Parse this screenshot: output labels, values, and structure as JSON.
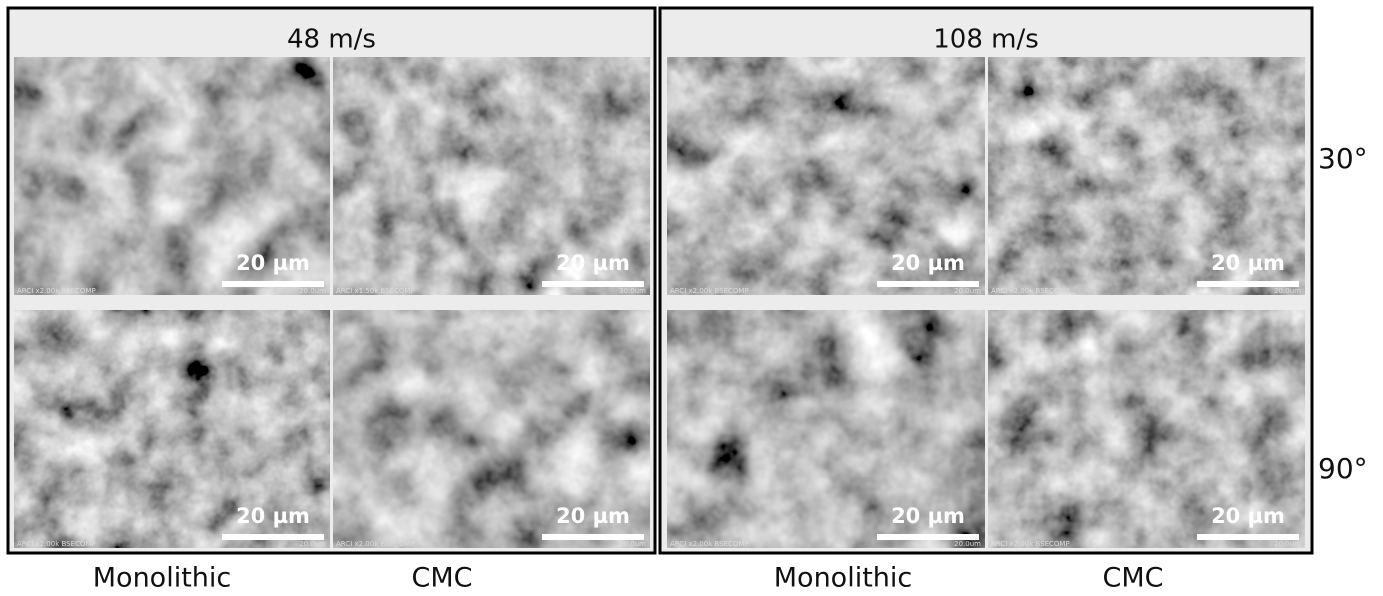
{
  "panels": [
    {
      "title": "48 m/s",
      "images": [
        {
          "scale_bar": "20 µm",
          "info": "ARCI x2.00k BSECOMP",
          "field": "20.0um"
        },
        {
          "scale_bar": "20 µm",
          "info": "ARCI x1.50k BSECOMP",
          "field": "30.0um"
        },
        {
          "scale_bar": "20 µm",
          "info": "ARCI x2.00k BSECOMP",
          "field": "20.0um"
        },
        {
          "scale_bar": "20 µm",
          "info": "ARCI x2.00k BSECOMP",
          "field": "20.0um"
        }
      ]
    },
    {
      "title": "108 m/s",
      "images": [
        {
          "scale_bar": "20 µm",
          "info": "ARCI x2.00k BSECOMP",
          "field": "20.0um"
        },
        {
          "scale_bar": "20 µm",
          "info": "ARCI x2.00k BSECOMP",
          "field": "20.0um"
        },
        {
          "scale_bar": "20 µm",
          "info": "ARCI x2.00k BSECOMP",
          "field": "20.0um"
        },
        {
          "scale_bar": "20 µm",
          "info": "ARCI x2.00k BSECOMP",
          "field": "20.0um"
        }
      ]
    }
  ],
  "row_labels": [
    "30°",
    "90°"
  ],
  "column_labels": [
    "Monolithic",
    "CMC",
    "Monolithic",
    "CMC"
  ]
}
